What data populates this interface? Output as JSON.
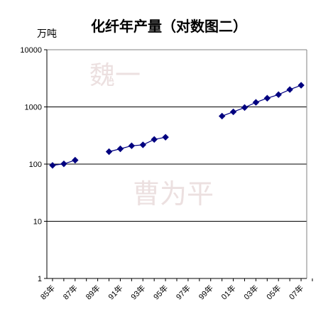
{
  "chart_data": {
    "type": "line",
    "title": "化纤年产量（对数图二）",
    "ylabel": "万吨",
    "y_scale": "log",
    "ylim": [
      1,
      10000
    ],
    "y_ticks": [
      "1",
      "10",
      "100",
      "1000",
      "10000"
    ],
    "y_tick_values": [
      1,
      10,
      100,
      1000,
      10000
    ],
    "x_ticks": [
      "85年",
      "87年",
      "89年",
      "91年",
      "93年",
      "95年",
      "97年",
      "99年",
      "01年",
      "03年",
      "05年",
      "07年"
    ],
    "x_tick_years": [
      1985,
      1987,
      1989,
      1991,
      1993,
      1995,
      1997,
      1999,
      2001,
      2003,
      2005,
      2007
    ],
    "xlim": [
      1985,
      2008
    ],
    "grid": "horizontal",
    "legend": "none",
    "watermarks": [
      "魏一",
      "曹为平"
    ],
    "colors": {
      "marker": "#000080",
      "line": "#000080",
      "grid": "#000000",
      "watermark": "#ece0e0"
    },
    "series": [
      {
        "segments": [
          {
            "x": [
              1985,
              1986,
              1987
            ],
            "y": [
              95,
              101,
              117
            ]
          },
          {
            "x": [
              1990,
              1991,
              1992,
              1993,
              1994,
              1995
            ],
            "y": [
              165,
              185,
              209,
              217,
              270,
              295
            ]
          },
          {
            "x": [
              2000,
              2001,
              2002,
              2003,
              2004,
              2005,
              2006,
              2007
            ],
            "y": [
              690,
              820,
              975,
              1200,
              1420,
              1640,
              2010,
              2390
            ]
          }
        ]
      }
    ]
  }
}
